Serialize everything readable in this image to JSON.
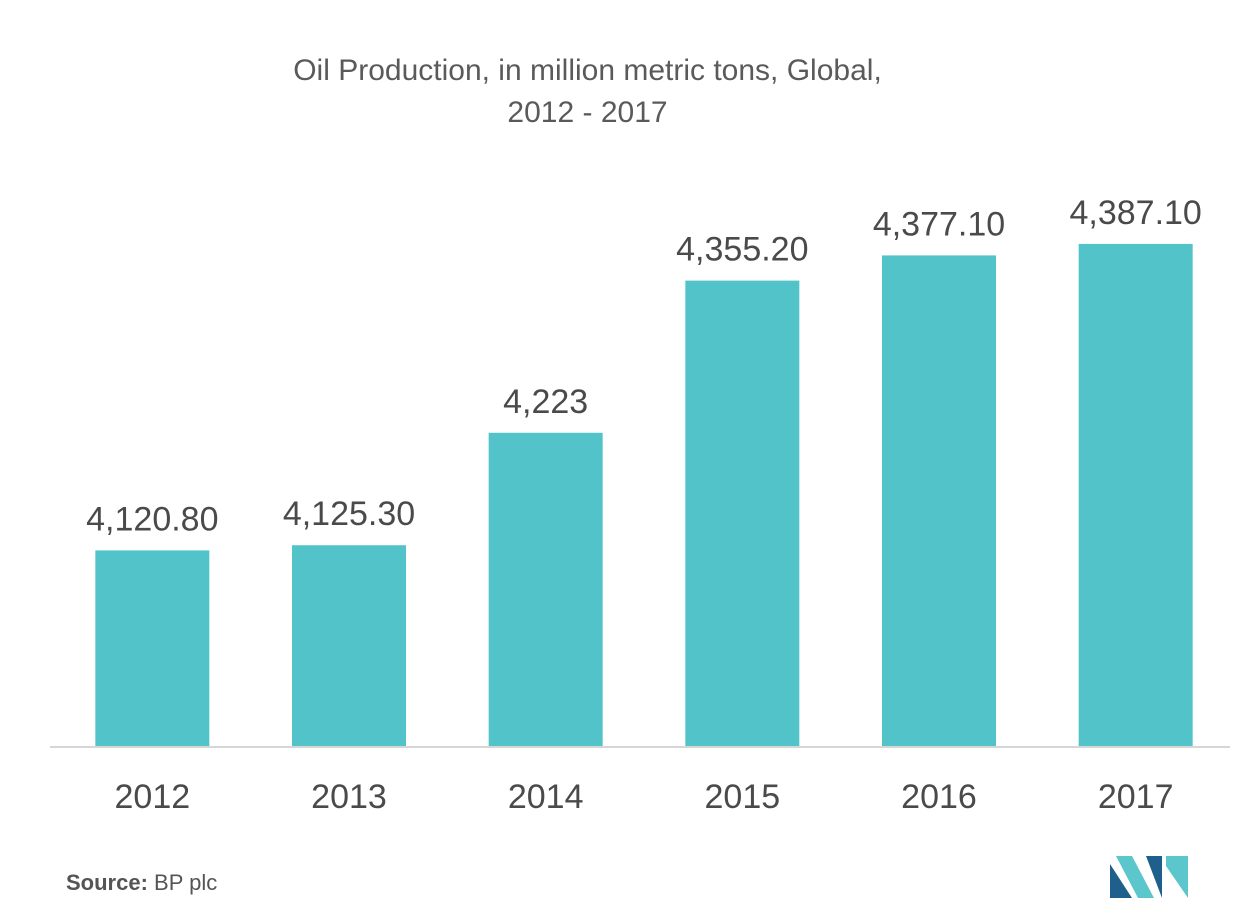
{
  "chart_data": {
    "type": "bar",
    "title_line1": "Oil Production, in million metric tons, Global,",
    "title_line2": "2012 - 2017",
    "categories": [
      "2012",
      "2013",
      "2014",
      "2015",
      "2016",
      "2017"
    ],
    "values": [
      4120.8,
      4125.3,
      4223,
      4355.2,
      4377.1,
      4387.1
    ],
    "value_labels": [
      "4,120.80",
      "4,125.30",
      "4,223",
      "4,355.20",
      "4,377.10",
      "4,387.10"
    ],
    "xlabel": "",
    "ylabel": "",
    "ylim": [
      3950,
      4460
    ],
    "grid": false,
    "bar_color": "#51c3c9"
  },
  "source": {
    "label": "Source:",
    "text": "BP plc"
  },
  "logo": {
    "icon": "mordor-intelligence-logo",
    "color_dark": "#1f5f8b",
    "color_light": "#5bc6cc"
  }
}
